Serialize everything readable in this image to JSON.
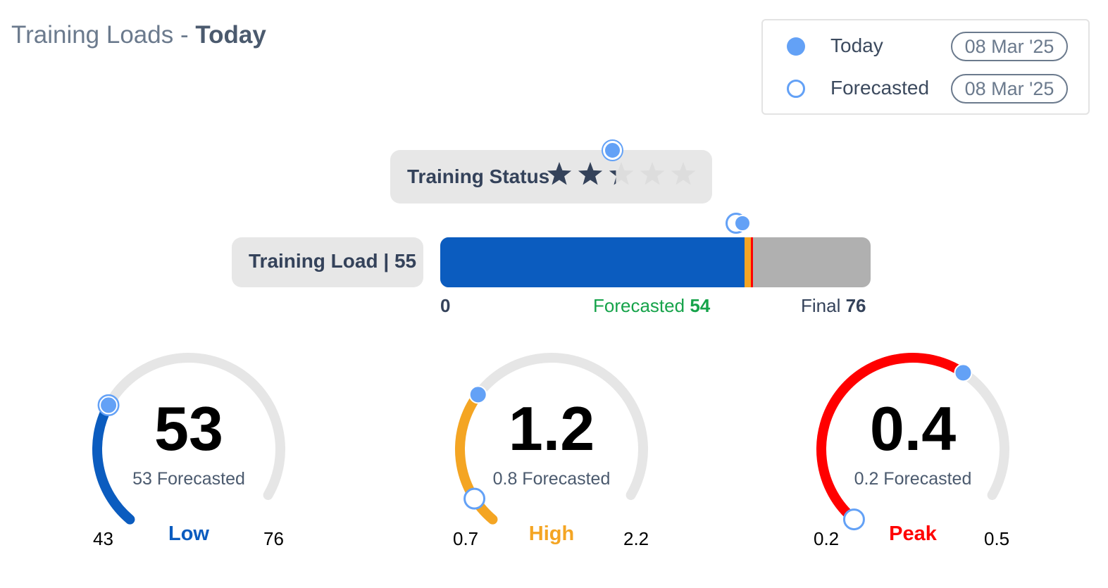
{
  "header": {
    "title_prefix": "Training Loads - ",
    "title_emphasis": "Today"
  },
  "legend": {
    "items": [
      {
        "label": "Today",
        "date": "08 Mar '25",
        "marker": "filled-dot"
      },
      {
        "label": "Forecasted",
        "date": "08 Mar '25",
        "marker": "hollow-dot"
      }
    ]
  },
  "colors": {
    "marker": "#63a1f6",
    "low": "#0b5cbf",
    "high": "#f4a523",
    "peak": "#ff0000",
    "track": "#e6e6e6",
    "forecast_text": "#16a34a",
    "star_on": "#34425a",
    "star_off": "#dddddd"
  },
  "training_status": {
    "label": "Training Status",
    "stars_max": 5,
    "stars": 2.3
  },
  "training_load": {
    "label": "Training Load | 55",
    "value": 55,
    "min": "0",
    "min_value": 0,
    "forecast_label": "Forecasted",
    "forecast": "54",
    "forecast_value": 54,
    "final_label": "Final",
    "final": "76",
    "final_value": 76
  },
  "gauges": [
    {
      "value": "53",
      "forecast_text": "53 Forecasted",
      "min": "43",
      "max": "76",
      "level": "Low",
      "min_value": 43,
      "max_value": 76,
      "value_num": 53,
      "forecast_num": 53,
      "color": "#0b5cbf"
    },
    {
      "value": "1.2",
      "forecast_text": "0.8 Forecasted",
      "min": "0.7",
      "max": "2.2",
      "level": "High",
      "min_value": 0.7,
      "max_value": 2.2,
      "value_num": 1.2,
      "forecast_num": 0.8,
      "color": "#f4a523"
    },
    {
      "value": "0.4",
      "forecast_text": "0.2 Forecasted",
      "min": "0.2",
      "max": "0.5",
      "level": "Peak",
      "min_value": 0.2,
      "max_value": 0.5,
      "value_num": 0.4,
      "forecast_num": 0.2,
      "color": "#ff0000"
    }
  ]
}
